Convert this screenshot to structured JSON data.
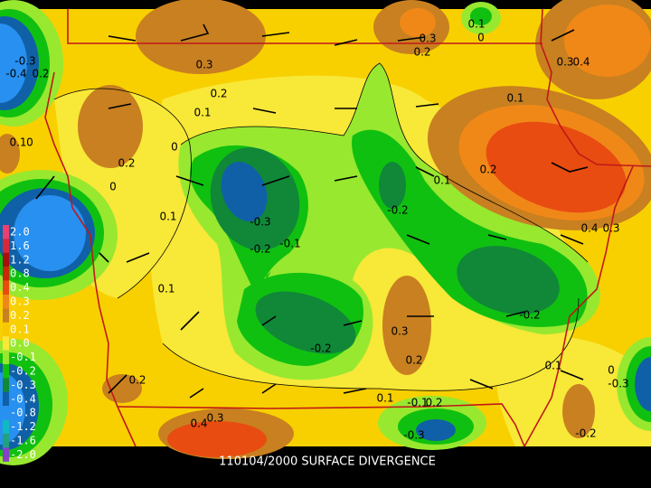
{
  "title": "110104/2000 SURFACE DIVERGENCE",
  "legend": [
    {
      "label": "2.0",
      "color": "#e84070"
    },
    {
      "label": "1.6",
      "color": "#d82838"
    },
    {
      "label": "1.2",
      "color": "#a81010"
    },
    {
      "label": "0.8",
      "color": "#c82808"
    },
    {
      "label": "0.4",
      "color": "#e84c10"
    },
    {
      "label": "0.3",
      "color": "#f08818"
    },
    {
      "label": "0.2",
      "color": "#c88020"
    },
    {
      "label": "0.1",
      "color": "#f8c800"
    },
    {
      "label": "0.0",
      "color": "#f8e838"
    },
    {
      "label": "-0.1",
      "color": "#98e830"
    },
    {
      "label": "-0.2",
      "color": "#10c010"
    },
    {
      "label": "-0.3",
      "color": "#108838"
    },
    {
      "label": "-0.4",
      "color": "#1060a8"
    },
    {
      "label": "-0.8",
      "color": "#2890f0"
    },
    {
      "label": "-1.2",
      "color": "#10b8c0"
    },
    {
      "label": "-1.6",
      "color": "#20a080"
    },
    {
      "label": "-2.0",
      "color": "#8840c8"
    }
  ],
  "contour_labels": [
    "0.3",
    "0.2",
    "0.1",
    "0.3",
    "0.2",
    "0.1",
    "0",
    "0.3",
    "0.4",
    "-0.3",
    "-0.4",
    "0.2",
    "0.1",
    "0.1",
    "0",
    "0.2",
    "0",
    "0",
    "0.1",
    "-0.3",
    "-0.2",
    "-0.1",
    "-0.2",
    "0.1",
    "0.2",
    "0.4",
    "0.3",
    "0.1",
    "-0.2",
    "0.3",
    "0.2",
    "-0.2",
    "0.1",
    "0",
    "-0.3",
    "0.2",
    "0.1",
    "-0.1",
    "0.2",
    "-0.3",
    "-0.2",
    "0.4",
    "0.3"
  ]
}
